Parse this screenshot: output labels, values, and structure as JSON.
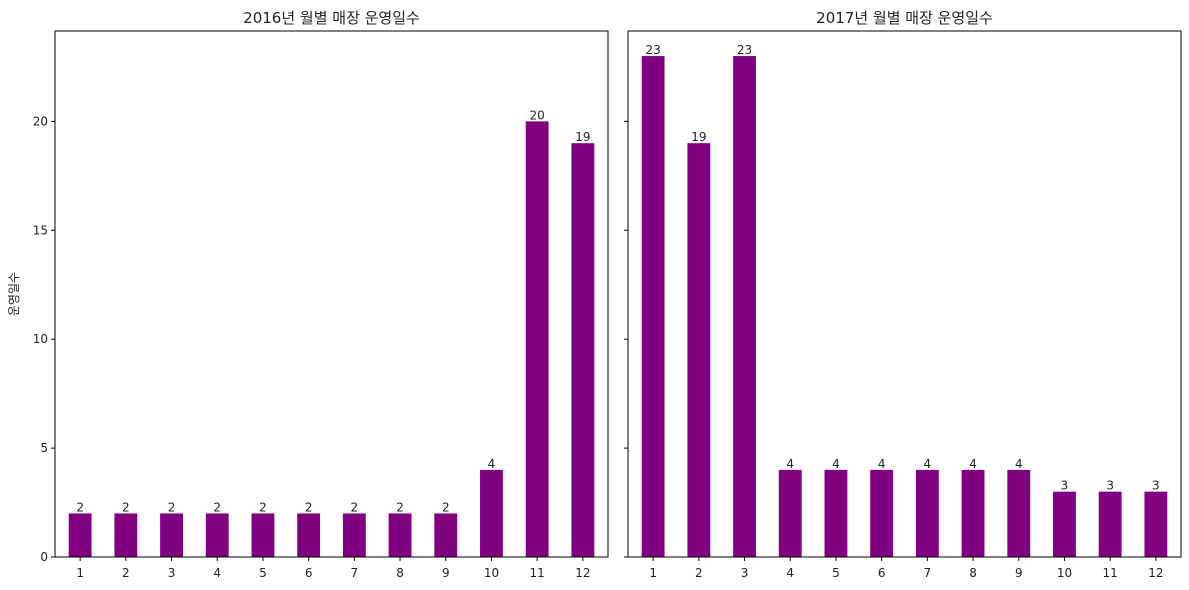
{
  "chart_data": [
    {
      "type": "bar",
      "title": "2016년 월별 매장 운영일수",
      "xlabel": "",
      "ylabel": "운영일수",
      "categories": [
        "1",
        "2",
        "3",
        "4",
        "5",
        "6",
        "7",
        "8",
        "9",
        "10",
        "11",
        "12"
      ],
      "values": [
        2,
        2,
        2,
        2,
        2,
        2,
        2,
        2,
        2,
        4,
        20,
        19
      ],
      "ylim": [
        0,
        24.15
      ],
      "yticks": [
        0,
        5,
        10,
        15,
        20
      ],
      "bar_color": "#800080",
      "grid": false
    },
    {
      "type": "bar",
      "title": "2017년 월별 매장 운영일수",
      "xlabel": "",
      "ylabel": "",
      "categories": [
        "1",
        "2",
        "3",
        "4",
        "5",
        "6",
        "7",
        "8",
        "9",
        "10",
        "11",
        "12"
      ],
      "values": [
        23,
        19,
        23,
        4,
        4,
        4,
        4,
        4,
        4,
        3,
        3,
        3
      ],
      "ylim": [
        0,
        24.15
      ],
      "yticks": [
        0,
        5,
        10,
        15,
        20
      ],
      "bar_color": "#800080",
      "grid": false
    }
  ]
}
